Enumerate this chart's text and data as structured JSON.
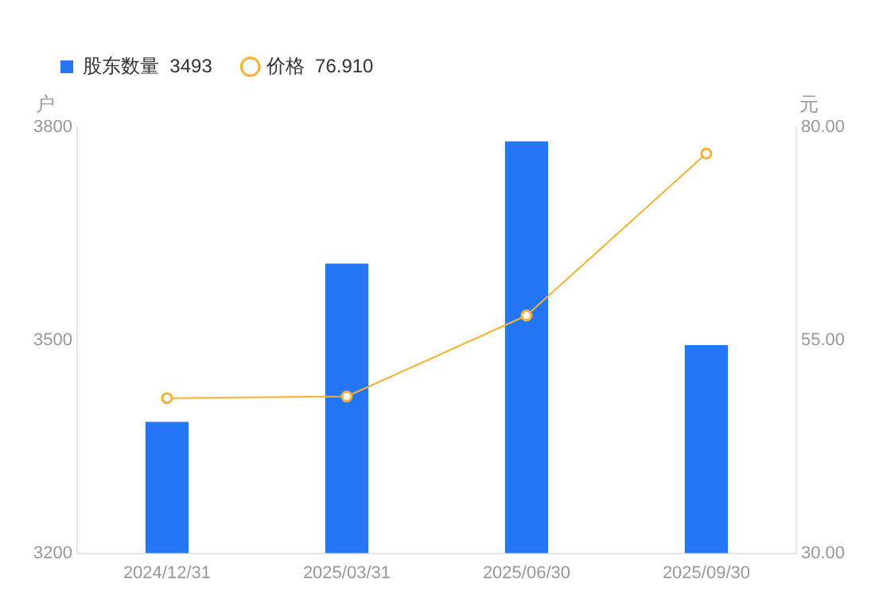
{
  "chart_data": {
    "type": "bar",
    "categories": [
      "2024/12/31",
      "2025/03/31",
      "2025/06/30",
      "2025/09/30"
    ],
    "series": [
      {
        "name": "股东数量  3493",
        "color": "#2476f5",
        "values": [
          3385,
          3608,
          3780,
          3493
        ]
      },
      {
        "name": "价格  76.910",
        "type": "line",
        "axis": "y2",
        "color": "#f5b335",
        "values": [
          48.2,
          48.4,
          57.9,
          76.91
        ]
      }
    ],
    "ylabel": "户",
    "y2label": "元",
    "ylim": [
      3200,
      3800
    ],
    "yticks": [
      3200,
      3500,
      3800
    ],
    "y2lim": [
      30,
      80
    ],
    "y2ticks": [
      {
        "value": 30,
        "label": "30.00"
      },
      {
        "value": 55,
        "label": "55.00"
      },
      {
        "value": 80,
        "label": "80.00"
      }
    ],
    "grid": false,
    "legend": "top left",
    "marker": "circle",
    "line_style": "solid"
  }
}
